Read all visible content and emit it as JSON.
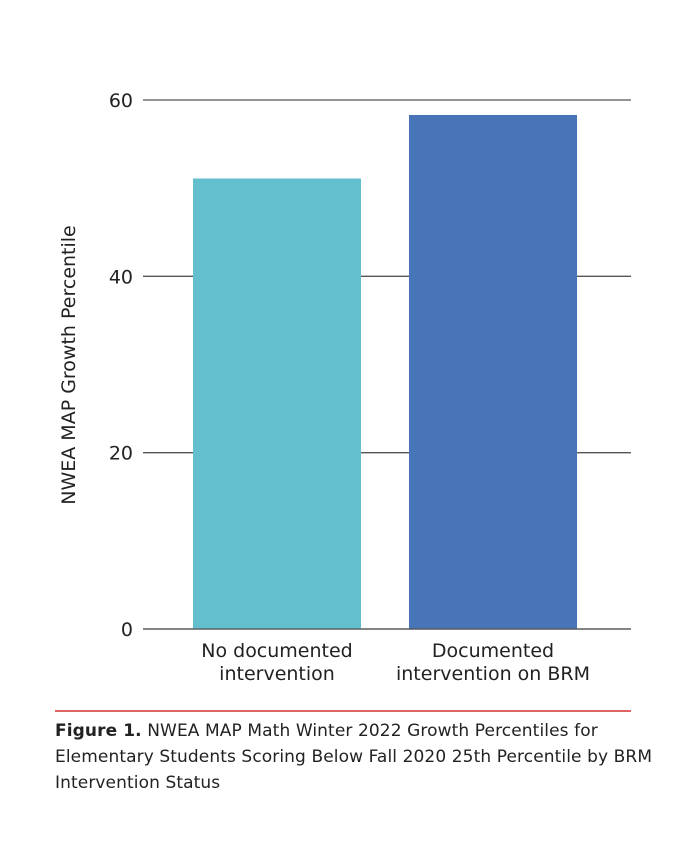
{
  "chart_data": {
    "type": "bar",
    "categories": [
      [
        "No documented",
        "intervention"
      ],
      [
        "Documented",
        "intervention on BRM"
      ]
    ],
    "values": [
      51.1,
      58.3
    ],
    "colors": [
      "#63bfcd",
      "#4775b7"
    ],
    "xlabel": "",
    "ylabel": "NWEA MAP Growth Percentile",
    "ylim": [
      0,
      60
    ],
    "yticks": [
      0,
      20,
      40,
      60
    ],
    "grid": true
  },
  "caption": {
    "label": "Figure 1.",
    "text": " NWEA MAP Math Winter 2022 Growth Percentiles for Elementary Students Scoring Below Fall 2020 25th Percentile by BRM Intervention Status"
  },
  "accent_color": "#e06363"
}
